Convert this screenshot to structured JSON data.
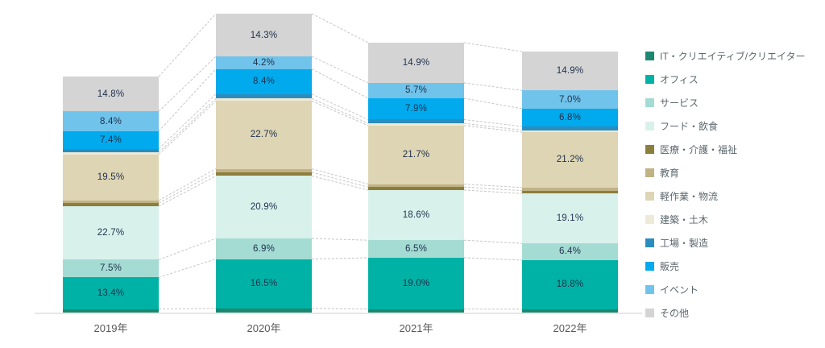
{
  "chart_data": {
    "type": "bar",
    "subtype": "stacked-percentage-column",
    "title": "",
    "xlabel": "",
    "ylabel": "",
    "gridlines": false,
    "legend_position": "right",
    "categories": [
      "2019年",
      "2020年",
      "2021年",
      "2022年"
    ],
    "label_format": "percent-one-decimal",
    "label_min_value_for_display": 4,
    "series": [
      {
        "name": "IT・クリエイティブ/クリエイター",
        "color": "#1c8870",
        "values": [
          1.5,
          1.4,
          1.3,
          1.3
        ],
        "values_estimated_unlabeled": true
      },
      {
        "name": "オフィス",
        "color": "#00b2a5",
        "values": [
          13.4,
          16.5,
          19.0,
          18.8
        ]
      },
      {
        "name": "サービス",
        "color": "#a4dcd3",
        "values": [
          7.5,
          6.9,
          6.5,
          6.4
        ]
      },
      {
        "name": "フード・飲食",
        "color": "#d9f1eb",
        "values": [
          22.7,
          20.9,
          18.6,
          19.1
        ]
      },
      {
        "name": "医療・介護・福祉",
        "color": "#8c7e3d",
        "values": [
          1.2,
          1.2,
          1.1,
          1.1
        ],
        "values_estimated_unlabeled": true
      },
      {
        "name": "教育",
        "color": "#c0b284",
        "values": [
          1.2,
          1.2,
          1.1,
          1.2
        ],
        "values_estimated_unlabeled": true
      },
      {
        "name": "軽作業・物流",
        "color": "#ded5b4",
        "values": [
          19.5,
          22.7,
          21.7,
          21.2
        ]
      },
      {
        "name": "建築・土木",
        "color": "#efe9d7",
        "values": [
          0.9,
          0.8,
          0.8,
          0.8
        ],
        "values_estimated_unlabeled": true
      },
      {
        "name": "工場・製造",
        "color": "#2b8dbf",
        "values": [
          1.5,
          1.5,
          1.4,
          1.4
        ],
        "values_estimated_unlabeled": true
      },
      {
        "name": "販売",
        "color": "#00aaec",
        "values": [
          7.4,
          8.4,
          7.9,
          6.8
        ]
      },
      {
        "name": "イベント",
        "color": "#70c3ea",
        "values": [
          8.4,
          4.2,
          5.7,
          7.0
        ]
      },
      {
        "name": "その他",
        "color": "#d4d4d4",
        "values": [
          14.8,
          14.3,
          14.9,
          14.9
        ]
      }
    ],
    "styles": {
      "segment_label_color": "#1e2f4d",
      "axis_label_color": "#595959",
      "legend_text_color": "#5b676d",
      "axis_line_color": "#e7e7e7",
      "connector_line_color": "#c6c6c6"
    }
  }
}
